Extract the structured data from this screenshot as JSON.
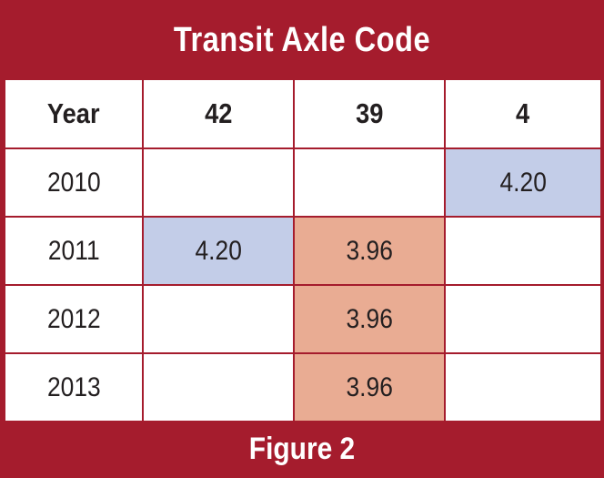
{
  "title": "Transit Axle Code",
  "footer": "Figure 2",
  "colors": {
    "frame": "#a51c2d",
    "highlight_blue": "#c3cde8",
    "highlight_orange": "#e9ac93"
  },
  "table": {
    "headers": [
      "Year",
      "42",
      "39",
      "4"
    ],
    "rows": [
      {
        "year": "2010",
        "c42": "",
        "c39": "",
        "c4": "4.20",
        "hl": [
          "",
          "",
          "blue"
        ]
      },
      {
        "year": "2011",
        "c42": "4.20",
        "c39": "3.96",
        "c4": "",
        "hl": [
          "blue",
          "orange",
          ""
        ]
      },
      {
        "year": "2012",
        "c42": "",
        "c39": "3.96",
        "c4": "",
        "hl": [
          "",
          "orange",
          ""
        ]
      },
      {
        "year": "2013",
        "c42": "",
        "c39": "3.96",
        "c4": "",
        "hl": [
          "",
          "orange",
          ""
        ]
      }
    ]
  }
}
